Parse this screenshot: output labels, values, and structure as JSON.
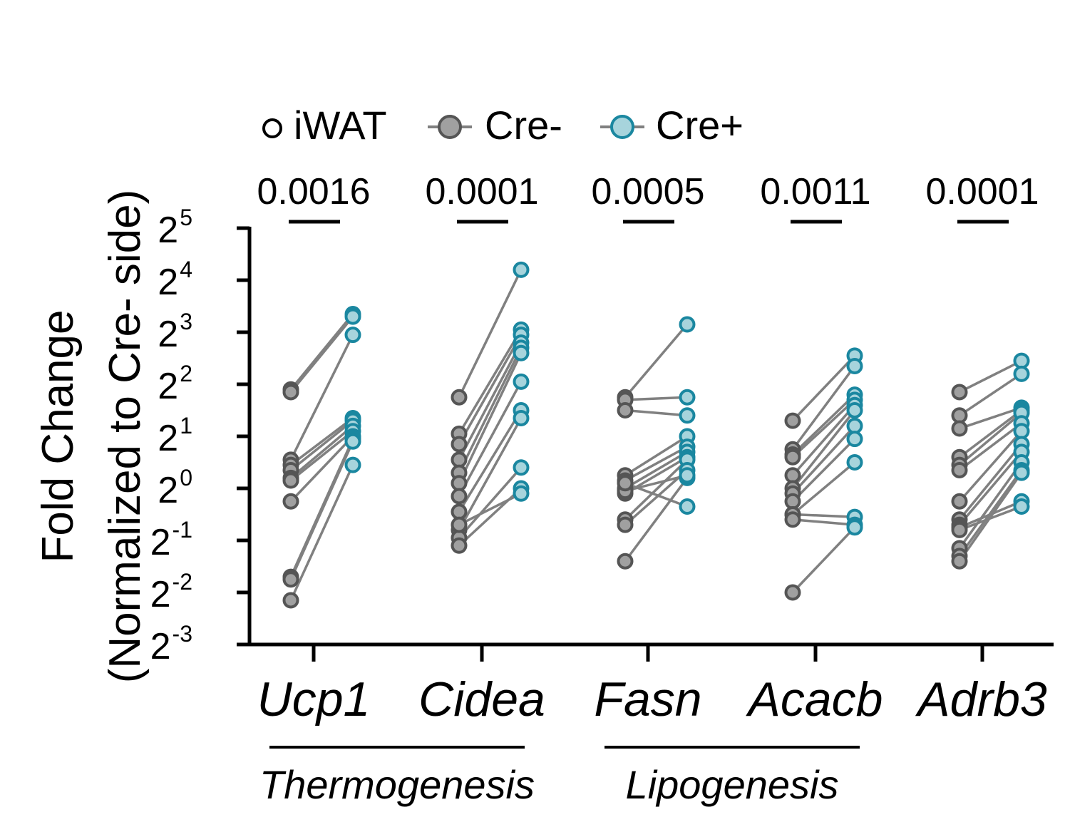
{
  "chart_data": {
    "type": "scatter",
    "subtype": "paired before-after",
    "ylabel_line1": "Fold Change",
    "ylabel_line2": "(Normalized to Cre- side)",
    "y_scale": "log2",
    "y_tick_base": "2",
    "y_tick_exponents": [
      "5",
      "4",
      "3",
      "2",
      "1",
      "0",
      "-1",
      "-2",
      "-3"
    ],
    "ylim_log2": [
      -3,
      5
    ],
    "legend": {
      "title": "iWAT",
      "entries": [
        {
          "label": "Cre-",
          "color": "#555555",
          "fill": "#a0a0a0"
        },
        {
          "label": "Cre+",
          "color": "#1a87a0",
          "fill": "#a7d4dc"
        }
      ],
      "position": "top"
    },
    "colors": {
      "line": "#808080",
      "cre_minus_stroke": "#555555",
      "cre_minus_fill": "#a0a0a0",
      "cre_plus_stroke": "#1a87a0",
      "cre_plus_fill": "#a7d4dc"
    },
    "genes": [
      {
        "name": "Ucp1",
        "p_value": "0.0016",
        "pairs_log2": [
          [
            1.9,
            3.35
          ],
          [
            1.85,
            3.3
          ],
          [
            0.55,
            2.95
          ],
          [
            0.45,
            1.35
          ],
          [
            0.35,
            1.3
          ],
          [
            0.2,
            1.2
          ],
          [
            0.15,
            1.1
          ],
          [
            -0.25,
            1.0
          ],
          [
            -1.7,
            0.95
          ],
          [
            -1.75,
            0.9
          ],
          [
            -2.15,
            0.45
          ]
        ]
      },
      {
        "name": "Cidea",
        "p_value": "0.0001",
        "pairs_log2": [
          [
            1.75,
            4.2
          ],
          [
            1.05,
            3.05
          ],
          [
            0.85,
            2.95
          ],
          [
            0.55,
            2.8
          ],
          [
            0.3,
            2.7
          ],
          [
            0.1,
            2.6
          ],
          [
            -0.15,
            2.05
          ],
          [
            -0.45,
            1.5
          ],
          [
            -0.8,
            1.35
          ],
          [
            -0.95,
            0.4
          ],
          [
            -1.1,
            0.0
          ],
          [
            -0.7,
            -0.1
          ]
        ]
      },
      {
        "name": "Fasn",
        "p_value": "0.0005",
        "pairs_log2": [
          [
            1.75,
            3.15
          ],
          [
            1.7,
            1.75
          ],
          [
            1.5,
            1.4
          ],
          [
            0.25,
            1.0
          ],
          [
            0.15,
            0.8
          ],
          [
            0.0,
            0.7
          ],
          [
            -0.1,
            0.6
          ],
          [
            -0.6,
            0.55
          ],
          [
            -0.7,
            0.35
          ],
          [
            -1.4,
            0.2
          ],
          [
            -0.05,
            0.25
          ],
          [
            0.1,
            -0.35
          ]
        ]
      },
      {
        "name": "Acacb",
        "p_value": "0.0011",
        "pairs_log2": [
          [
            1.3,
            2.55
          ],
          [
            0.75,
            2.35
          ],
          [
            0.65,
            1.8
          ],
          [
            0.6,
            1.7
          ],
          [
            0.25,
            1.6
          ],
          [
            0.0,
            1.5
          ],
          [
            -0.1,
            1.2
          ],
          [
            -0.25,
            0.95
          ],
          [
            -0.5,
            0.5
          ],
          [
            -0.5,
            -0.55
          ],
          [
            -0.6,
            -0.7
          ],
          [
            -2.0,
            -0.75
          ]
        ]
      },
      {
        "name": "Adrb3",
        "p_value": "0.0001",
        "pairs_log2": [
          [
            1.85,
            2.45
          ],
          [
            1.4,
            2.2
          ],
          [
            1.15,
            1.55
          ],
          [
            0.6,
            1.5
          ],
          [
            0.45,
            1.45
          ],
          [
            0.35,
            1.25
          ],
          [
            -0.25,
            1.1
          ],
          [
            -0.6,
            0.85
          ],
          [
            -0.7,
            0.7
          ],
          [
            -1.15,
            0.5
          ],
          [
            -1.3,
            0.35
          ],
          [
            -1.4,
            0.3
          ],
          [
            -0.75,
            -0.25
          ],
          [
            -0.8,
            -0.35
          ]
        ]
      }
    ],
    "groups": [
      {
        "label": "Thermogenesis",
        "genes": [
          "Ucp1",
          "Cidea"
        ]
      },
      {
        "label": "Lipogenesis",
        "genes": [
          "Fasn",
          "Acacb"
        ]
      }
    ]
  }
}
